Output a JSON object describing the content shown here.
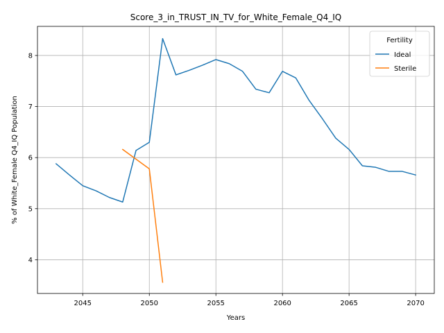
{
  "chart_data": {
    "type": "line",
    "title": "Score_3_in_TRUST_IN_TV_for_White_Female_Q4_IQ",
    "xlabel": "Years",
    "ylabel": "% of White_Female Q4_IQ Population",
    "xlim": [
      2041.6,
      2071.4
    ],
    "ylim": [
      3.34,
      8.57
    ],
    "xticks": [
      2045,
      2050,
      2055,
      2060,
      2065,
      2070
    ],
    "yticks": [
      4,
      5,
      6,
      7,
      8
    ],
    "grid": true,
    "legend": {
      "title": "Fertility",
      "position": "top-right"
    },
    "series": [
      {
        "name": "Ideal",
        "color": "#1f77b4",
        "x": [
          2043,
          2044,
          2045,
          2046,
          2047,
          2048,
          2049,
          2050,
          2051,
          2052,
          2053,
          2054,
          2055,
          2056,
          2057,
          2058,
          2059,
          2060,
          2061,
          2062,
          2063,
          2064,
          2065,
          2066,
          2067,
          2068,
          2069,
          2070
        ],
        "values": [
          5.88,
          5.66,
          5.45,
          5.35,
          5.22,
          5.13,
          6.14,
          6.3,
          8.33,
          7.62,
          7.71,
          7.81,
          7.92,
          7.84,
          7.69,
          7.34,
          7.27,
          7.69,
          7.56,
          7.12,
          6.76,
          6.38,
          6.16,
          5.84,
          5.81,
          5.73,
          5.73,
          5.66
        ]
      },
      {
        "name": "Sterile",
        "color": "#ff7f0e",
        "x": [
          2048,
          2050,
          2051
        ],
        "values": [
          6.16,
          5.78,
          3.56
        ]
      }
    ]
  }
}
